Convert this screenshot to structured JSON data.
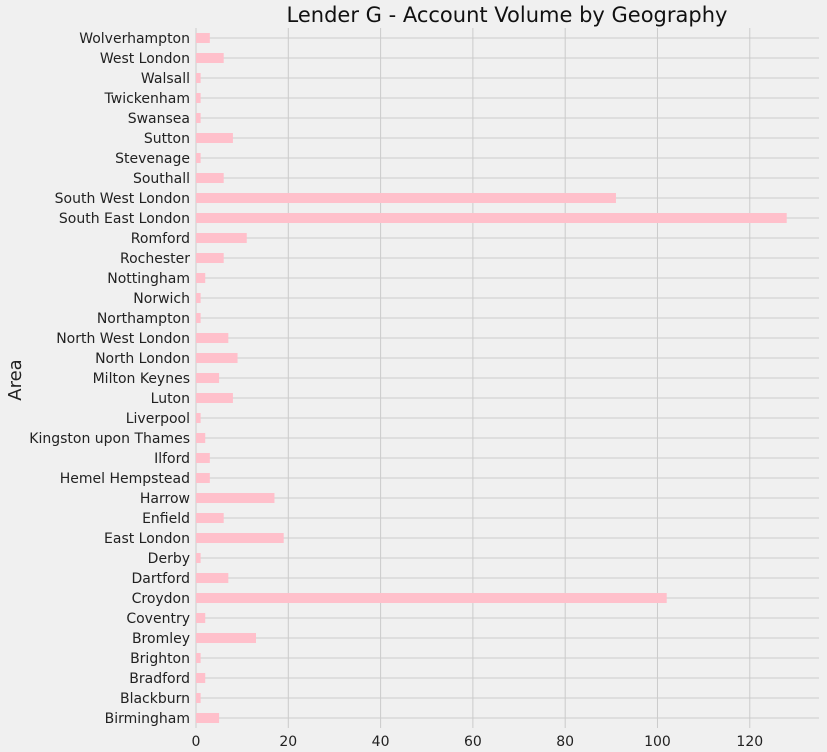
{
  "chart_data": {
    "type": "bar",
    "orientation": "horizontal",
    "title": "Lender G - Account Volume by Geography",
    "xlabel": "",
    "ylabel": "Area",
    "xlim": [
      0,
      135
    ],
    "xticks": [
      0,
      20,
      40,
      60,
      80,
      100,
      120
    ],
    "grid": true,
    "bar_color": "#ffc0cb",
    "background_color": "#f0f0f0",
    "categories": [
      "Birmingham",
      "Blackburn",
      "Bradford",
      "Brighton",
      "Bromley",
      "Coventry",
      "Croydon",
      "Dartford",
      "Derby",
      "East London",
      "Enfield",
      "Harrow",
      "Hemel Hempstead",
      "Ilford",
      "Kingston upon Thames",
      "Liverpool",
      "Luton",
      "Milton Keynes",
      "North London",
      "North West London",
      "Northampton",
      "Norwich",
      "Nottingham",
      "Rochester",
      "Romford",
      "South East London",
      "South West London",
      "Southall",
      "Stevenage",
      "Sutton",
      "Swansea",
      "Twickenham",
      "Walsall",
      "West London",
      "Wolverhampton"
    ],
    "values": [
      5,
      1,
      2,
      1,
      13,
      2,
      102,
      7,
      1,
      19,
      6,
      17,
      3,
      3,
      2,
      1,
      8,
      5,
      9,
      7,
      1,
      1,
      2,
      6,
      11,
      128,
      91,
      6,
      1,
      8,
      1,
      1,
      1,
      6,
      3
    ]
  }
}
